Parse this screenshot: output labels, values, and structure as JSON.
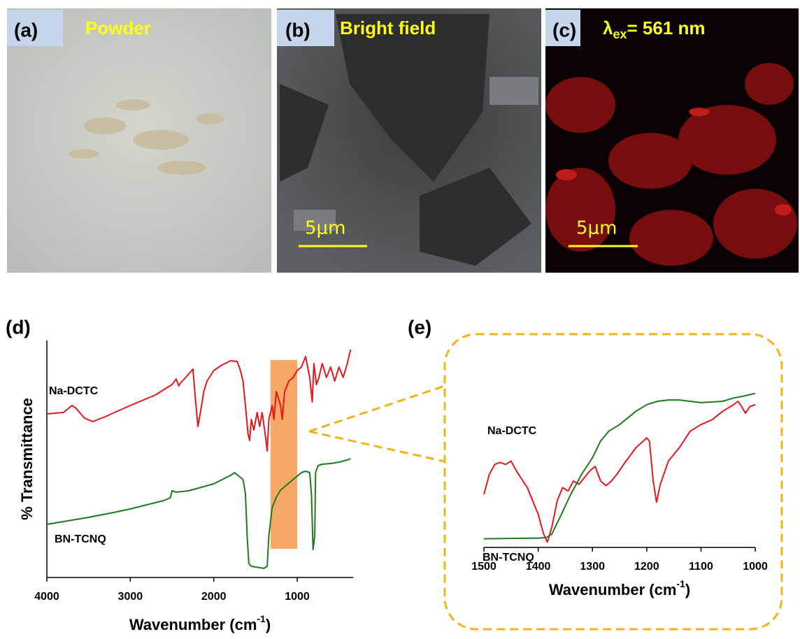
{
  "panels": [
    {
      "label": "(a)",
      "caption": "Powder"
    },
    {
      "label": "(b)",
      "caption": "Bright field",
      "scale_bar": "5μm"
    },
    {
      "label": "(c)",
      "caption": {
        "symbol": "λ",
        "subscript": "ex",
        "text": "= 561 nm"
      },
      "scale_bar": "5μm"
    }
  ],
  "chart_data": [
    {
      "type": "line",
      "panel_label": "(d)",
      "x_label": {
        "text": "Wavenumber (cm",
        "superscript": "-1",
        "close": ")"
      },
      "y_label": "% Transmittance",
      "xlim": [
        4000,
        330
      ],
      "ylim": [
        0,
        339
      ],
      "xticks": [
        4000,
        3000,
        2000,
        1000
      ],
      "highlight": {
        "x": [
          1320,
          1000
        ],
        "color": "#f7a866"
      },
      "series": [
        {
          "name": "Na-DCTC",
          "color": "#e8161b",
          "x": [
            4000,
            3800,
            3700,
            3650,
            3550,
            3450,
            3300,
            3000,
            2700,
            2500,
            2450,
            2420,
            2400,
            2300,
            2250,
            2220,
            2190,
            2160,
            2120,
            2080,
            2000,
            1900,
            1800,
            1720,
            1680,
            1650,
            1620,
            1590,
            1570,
            1550,
            1520,
            1480,
            1450,
            1420,
            1380,
            1360,
            1340,
            1300,
            1280,
            1250,
            1200,
            1180,
            1150,
            1100,
            1050,
            1000,
            950,
            900,
            850,
            820,
            800,
            770,
            740,
            700,
            650,
            600,
            550,
            500,
            450,
            400,
            360
          ],
          "values": [
            234,
            236,
            246,
            242,
            228,
            223,
            230,
            246,
            261,
            276,
            284,
            274,
            278,
            291,
            298,
            256,
            216,
            236,
            266,
            281,
            296,
            304,
            310,
            309,
            296,
            281,
            246,
            206,
            196,
            226,
            211,
            236,
            216,
            236,
            201,
            181,
            226,
            246,
            226,
            266,
            246,
            226,
            266,
            281,
            286,
            296,
            301,
            316,
            286,
            251,
            306,
            276,
            286,
            306,
            286,
            301,
            281,
            301,
            286,
            306,
            326
          ]
        },
        {
          "name": "BN-TCNQ",
          "color": "#1d7a1d",
          "x": [
            4000,
            3800,
            3500,
            3200,
            3000,
            2800,
            2600,
            2520,
            2500,
            2450,
            2300,
            2000,
            1800,
            1750,
            1700,
            1650,
            1620,
            1600,
            1580,
            1550,
            1400,
            1360,
            1340,
            1300,
            1250,
            1200,
            1100,
            1000,
            950,
            900,
            850,
            830,
            810,
            790,
            780,
            750,
            700,
            600,
            500,
            400,
            360
          ],
          "values": [
            76,
            80,
            86,
            93,
            98,
            104,
            110,
            114,
            124,
            122,
            124,
            134,
            146,
            150,
            145,
            140,
            120,
            60,
            20,
            16,
            13,
            16,
            60,
            100,
            115,
            125,
            135,
            145,
            150,
            152,
            150,
            120,
            40,
            60,
            150,
            160,
            162,
            163,
            165,
            168,
            170
          ]
        }
      ]
    },
    {
      "type": "line",
      "panel_label": "(e)",
      "x_label": {
        "text": "Wavenumber (cm",
        "superscript": "-1",
        "close": ")"
      },
      "xlim": [
        1500,
        1000
      ],
      "ylim": [
        0,
        240
      ],
      "xticks": [
        1500,
        1400,
        1300,
        1200,
        1100,
        1000
      ],
      "series": [
        {
          "name": "Na-DCTC",
          "color": "#e8161b",
          "x": [
            1500,
            1490,
            1480,
            1470,
            1460,
            1450,
            1440,
            1420,
            1400,
            1390,
            1383,
            1375,
            1365,
            1355,
            1345,
            1335,
            1325,
            1315,
            1305,
            1295,
            1285,
            1275,
            1265,
            1255,
            1240,
            1220,
            1200,
            1195,
            1188,
            1182,
            1175,
            1160,
            1140,
            1120,
            1100,
            1080,
            1060,
            1040,
            1032,
            1025,
            1018,
            1010,
            1000
          ],
          "values": [
            80,
            110,
            125,
            128,
            125,
            130,
            115,
            90,
            50,
            20,
            8,
            30,
            70,
            90,
            85,
            100,
            95,
            105,
            115,
            122,
            100,
            93,
            100,
            110,
            128,
            150,
            165,
            160,
            100,
            68,
            95,
            130,
            150,
            175,
            185,
            192,
            205,
            215,
            220,
            212,
            202,
            212,
            215
          ]
        },
        {
          "name": "BN-TCNQ",
          "color": "#1d7a1d",
          "x": [
            1500,
            1400,
            1385,
            1375,
            1360,
            1340,
            1320,
            1300,
            1285,
            1270,
            1250,
            1235,
            1220,
            1200,
            1180,
            1160,
            1140,
            1100,
            1060,
            1040,
            1020,
            1000
          ],
          "values": [
            13,
            14,
            15,
            20,
            45,
            80,
            110,
            135,
            160,
            175,
            185,
            195,
            205,
            215,
            220,
            222,
            222,
            218,
            220,
            225,
            228,
            232
          ]
        }
      ]
    }
  ]
}
